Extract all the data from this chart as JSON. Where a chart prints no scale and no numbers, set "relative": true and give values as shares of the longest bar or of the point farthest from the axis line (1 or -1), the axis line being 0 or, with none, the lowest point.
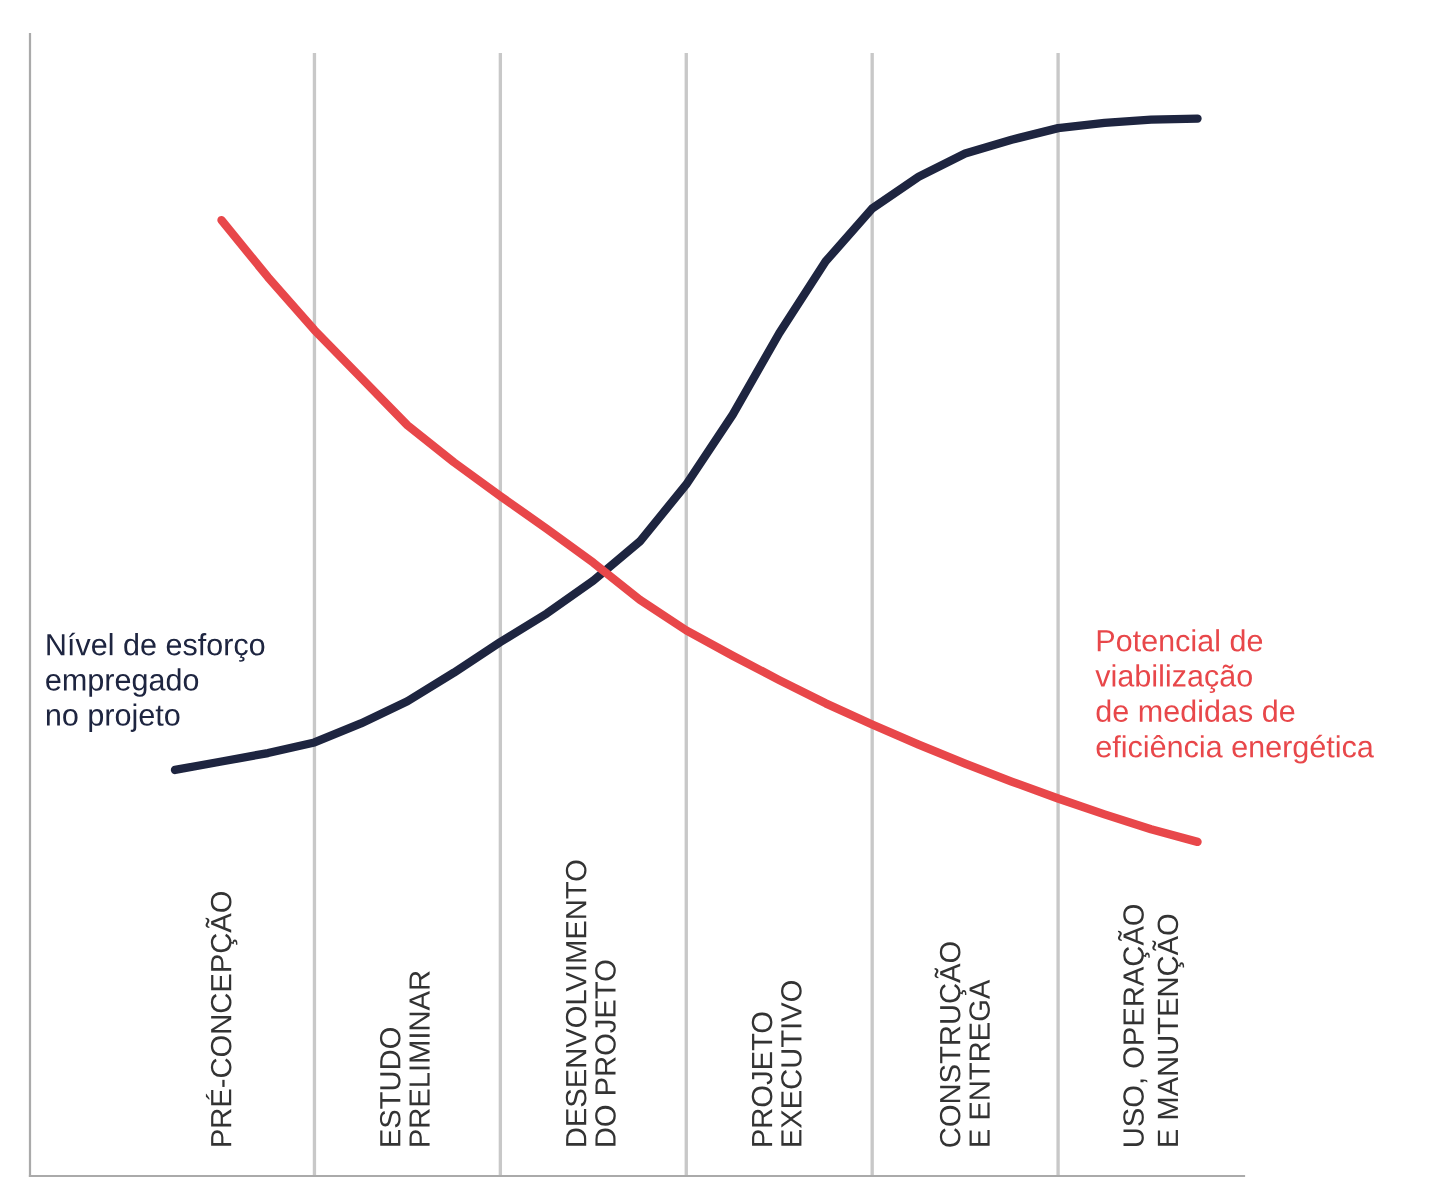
{
  "chart_data": {
    "type": "line",
    "relative": true,
    "categories": [
      null,
      "PRÉ-CONCEPÇÃO",
      null,
      null,
      null,
      "ESTUDO\nPRELIMINAR",
      null,
      null,
      null,
      "DESENVOLVIMENTO\nDO PROJETO",
      null,
      null,
      null,
      "PROJETO\nEXECUTIVO",
      null,
      null,
      null,
      "CONSTRUÇÃO\nE ENTREGA",
      null,
      null,
      null,
      "USO, OPERAÇÃO\nE MANUTENÇÃO",
      null,
      null
    ],
    "tick_labels": "x",
    "series": [
      {
        "name": "Nível de esforço\nempregado\nno projeto",
        "color": "#1e2540",
        "values": [
          0.384,
          0.392,
          0.4,
          0.41,
          0.428,
          0.449,
          0.476,
          0.505,
          0.532,
          0.563,
          0.6,
          0.654,
          0.72,
          0.797,
          0.865,
          0.915,
          0.945,
          0.967,
          0.98,
          0.991,
          0.996,
          0.999,
          1.0,
          null
        ]
      },
      {
        "name": "Potencial de\nviabilização\nde medidas de\neficiência energética",
        "color": "#e8474a",
        "values": [
          null,
          0.904,
          0.85,
          0.8,
          0.755,
          0.71,
          0.675,
          0.643,
          0.612,
          0.58,
          0.545,
          0.516,
          0.492,
          0.469,
          0.447,
          0.427,
          0.408,
          0.39,
          0.373,
          0.357,
          0.342,
          0.328,
          0.316,
          null
        ]
      }
    ],
    "grid": "x",
    "legend": false,
    "line_style": "solid",
    "marker": "none"
  }
}
